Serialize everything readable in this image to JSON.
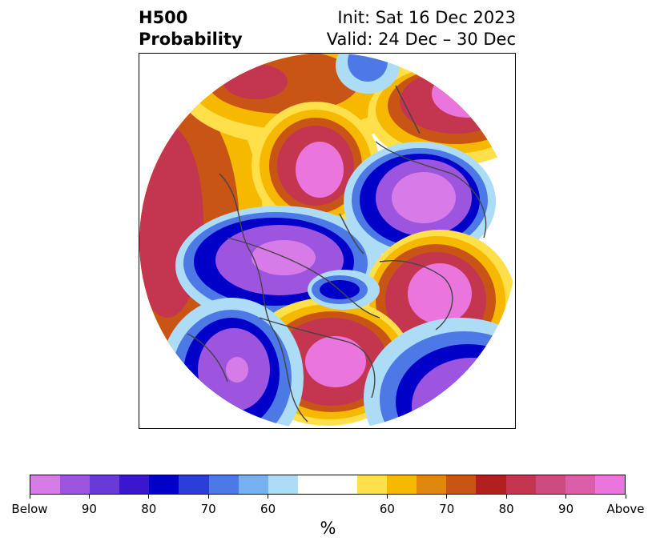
{
  "title": {
    "line1": "H500",
    "line2": "Probability",
    "init": "Init: Sat 16 Dec 2023",
    "valid": "Valid: 24 Dec – 30 Dec"
  },
  "colorbar": {
    "colors": [
      "#d77be8",
      "#9d55e0",
      "#6a3ad8",
      "#3a16cf",
      "#0000c8",
      "#2b3fd8",
      "#4c79e6",
      "#76b2f1",
      "#addcf7",
      "#ffffff",
      "#ffffff",
      "#ffe04a",
      "#f7b800",
      "#e0880e",
      "#c85516",
      "#b0201f",
      "#c43650",
      "#cc4c82",
      "#db5eaa",
      "#ea75dd"
    ],
    "tick_labels": [
      "Below",
      "90",
      "80",
      "70",
      "60",
      "60",
      "70",
      "80",
      "90",
      "Above"
    ],
    "unit": "%"
  },
  "map": {
    "colors": {
      "below_strong": "#9d55e0",
      "below_core": "#d77be8",
      "below_mid": "#0000c8",
      "below_light": "#4c79e6",
      "below_faint": "#addcf7",
      "above_faint": "#ffe04a",
      "above_light": "#f7b800",
      "above_mid": "#c85516",
      "above_strong": "#c43650",
      "above_core": "#ea75dd",
      "coast": "#444444"
    }
  }
}
